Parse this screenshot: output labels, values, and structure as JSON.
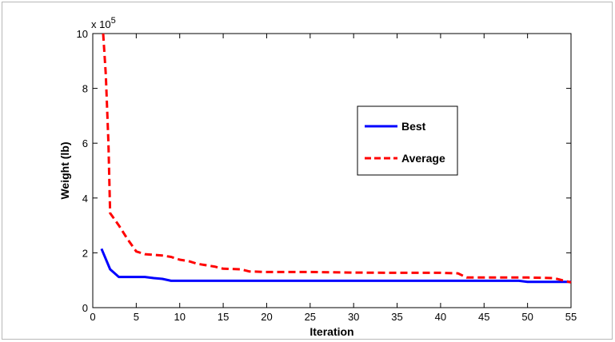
{
  "chart_data": {
    "type": "line",
    "title": "",
    "xlabel": "Iteration",
    "ylabel": "Weight (lb)",
    "y_scale_multiplier": "x 10",
    "y_scale_exponent": "5",
    "xlim": [
      0,
      55
    ],
    "ylim": [
      0,
      10
    ],
    "xticks": [
      "0",
      "5",
      "10",
      "15",
      "20",
      "25",
      "30",
      "35",
      "40",
      "45",
      "50",
      "55"
    ],
    "yticks": [
      "0",
      "2",
      "4",
      "6",
      "8",
      "10"
    ],
    "grid": false,
    "legend_position": "center-right",
    "series": [
      {
        "name": "Best",
        "color": "#0000ff",
        "style": "solid",
        "x": [
          1,
          2,
          3,
          4,
          5,
          6,
          7,
          8,
          9,
          10,
          15,
          20,
          25,
          30,
          35,
          40,
          45,
          49,
          50,
          55
        ],
        "y": [
          2.15,
          1.4,
          1.12,
          1.12,
          1.12,
          1.12,
          1.08,
          1.05,
          0.98,
          0.98,
          0.98,
          0.98,
          0.98,
          0.98,
          0.98,
          0.98,
          0.98,
          0.98,
          0.94,
          0.94
        ]
      },
      {
        "name": "Average",
        "color": "#ff0000",
        "style": "dashed",
        "x": [
          1.2,
          1.5,
          1.8,
          2,
          3,
          4,
          5,
          6,
          8,
          9,
          10,
          11,
          12,
          14,
          15,
          17,
          18,
          20,
          25,
          30,
          35,
          40,
          42,
          43,
          45,
          50,
          53,
          54,
          55
        ],
        "y": [
          10,
          8.5,
          6.0,
          3.45,
          3.0,
          2.5,
          2.05,
          1.95,
          1.9,
          1.85,
          1.75,
          1.7,
          1.6,
          1.5,
          1.42,
          1.4,
          1.32,
          1.3,
          1.3,
          1.28,
          1.27,
          1.27,
          1.25,
          1.1,
          1.1,
          1.1,
          1.08,
          1.0,
          0.92
        ]
      }
    ]
  }
}
